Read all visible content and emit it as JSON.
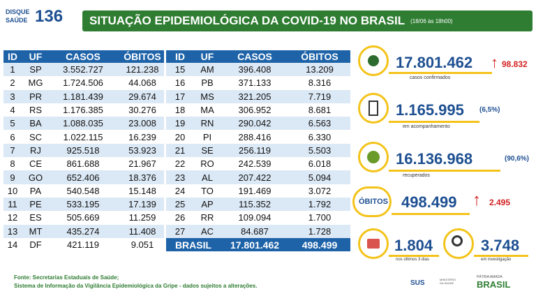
{
  "header": {
    "logo_top": "DISQUE",
    "logo_bottom": "SAÚDE",
    "logo_number": "136",
    "title": "SITUAÇÃO EPIDEMIOLÓGICA DA COVID-19 NO BRASIL",
    "date": "(18/06 às 18h00)"
  },
  "table_left": {
    "columns": [
      "ID",
      "UF",
      "CASOS",
      "ÓBITOS"
    ],
    "rows": [
      [
        "1",
        "SP",
        "3.552.727",
        "121.238"
      ],
      [
        "2",
        "MG",
        "1.724.506",
        "44.068"
      ],
      [
        "3",
        "PR",
        "1.181.439",
        "29.674"
      ],
      [
        "4",
        "RS",
        "1.176.385",
        "30.276"
      ],
      [
        "5",
        "BA",
        "1.088.035",
        "23.008"
      ],
      [
        "6",
        "SC",
        "1.022.115",
        "16.239"
      ],
      [
        "7",
        "RJ",
        "925.518",
        "53.923"
      ],
      [
        "8",
        "CE",
        "861.688",
        "21.967"
      ],
      [
        "9",
        "GO",
        "652.406",
        "18.376"
      ],
      [
        "10",
        "PA",
        "540.548",
        "15.148"
      ],
      [
        "11",
        "PE",
        "533.195",
        "17.139"
      ],
      [
        "12",
        "ES",
        "505.669",
        "11.259"
      ],
      [
        "13",
        "MT",
        "435.274",
        "11.408"
      ],
      [
        "14",
        "DF",
        "421.119",
        "9.051"
      ]
    ]
  },
  "table_right": {
    "columns": [
      "ID",
      "UF",
      "CASOS",
      "ÓBITOS"
    ],
    "rows": [
      [
        "15",
        "AM",
        "396.408",
        "13.209"
      ],
      [
        "16",
        "PB",
        "371.133",
        "8.316"
      ],
      [
        "17",
        "MS",
        "321.205",
        "7.719"
      ],
      [
        "18",
        "MA",
        "306.952",
        "8.681"
      ],
      [
        "19",
        "RN",
        "290.042",
        "6.563"
      ],
      [
        "20",
        "PI",
        "288.416",
        "6.330"
      ],
      [
        "21",
        "SE",
        "256.119",
        "5.503"
      ],
      [
        "22",
        "RO",
        "242.539",
        "6.018"
      ],
      [
        "23",
        "AL",
        "207.422",
        "5.094"
      ],
      [
        "24",
        "TO",
        "191.469",
        "3.072"
      ],
      [
        "25",
        "AP",
        "115.352",
        "1.792"
      ],
      [
        "26",
        "RR",
        "109.094",
        "1.700"
      ],
      [
        "27",
        "AC",
        "84.687",
        "1.728"
      ]
    ],
    "total": [
      "BRASIL",
      "17.801.462",
      "498.499"
    ]
  },
  "stats": {
    "confirmed": {
      "value": "17.801.462",
      "new": "98.832",
      "label": "casos confirmados"
    },
    "monitoring": {
      "value": "1.165.995",
      "percent": "(6,5%)",
      "label": "em acompanhamento"
    },
    "recovered": {
      "value": "16.136.968",
      "percent": "(90,6%)",
      "label": "recuperados"
    },
    "deaths": {
      "title": "ÓBITOS",
      "value": "498.499",
      "new": "2.495"
    },
    "recent": {
      "value": "1.804",
      "label": "nos últimos 3 dias"
    },
    "investigation": {
      "value": "3.748",
      "label": "em investigação"
    }
  },
  "footer": {
    "source": "Fonte: Secretarias Estaduais de Saúde;",
    "note": "Sistema de Informação da Vigilância Epidemiológica da Gripe - dados sujeitos a alterações.",
    "logo_sus": "SUS",
    "ministry": "MINISTÉRIO DA SAÚDE",
    "gov_top": "PÁTRIA AMADA",
    "gov": "BRASIL"
  }
}
